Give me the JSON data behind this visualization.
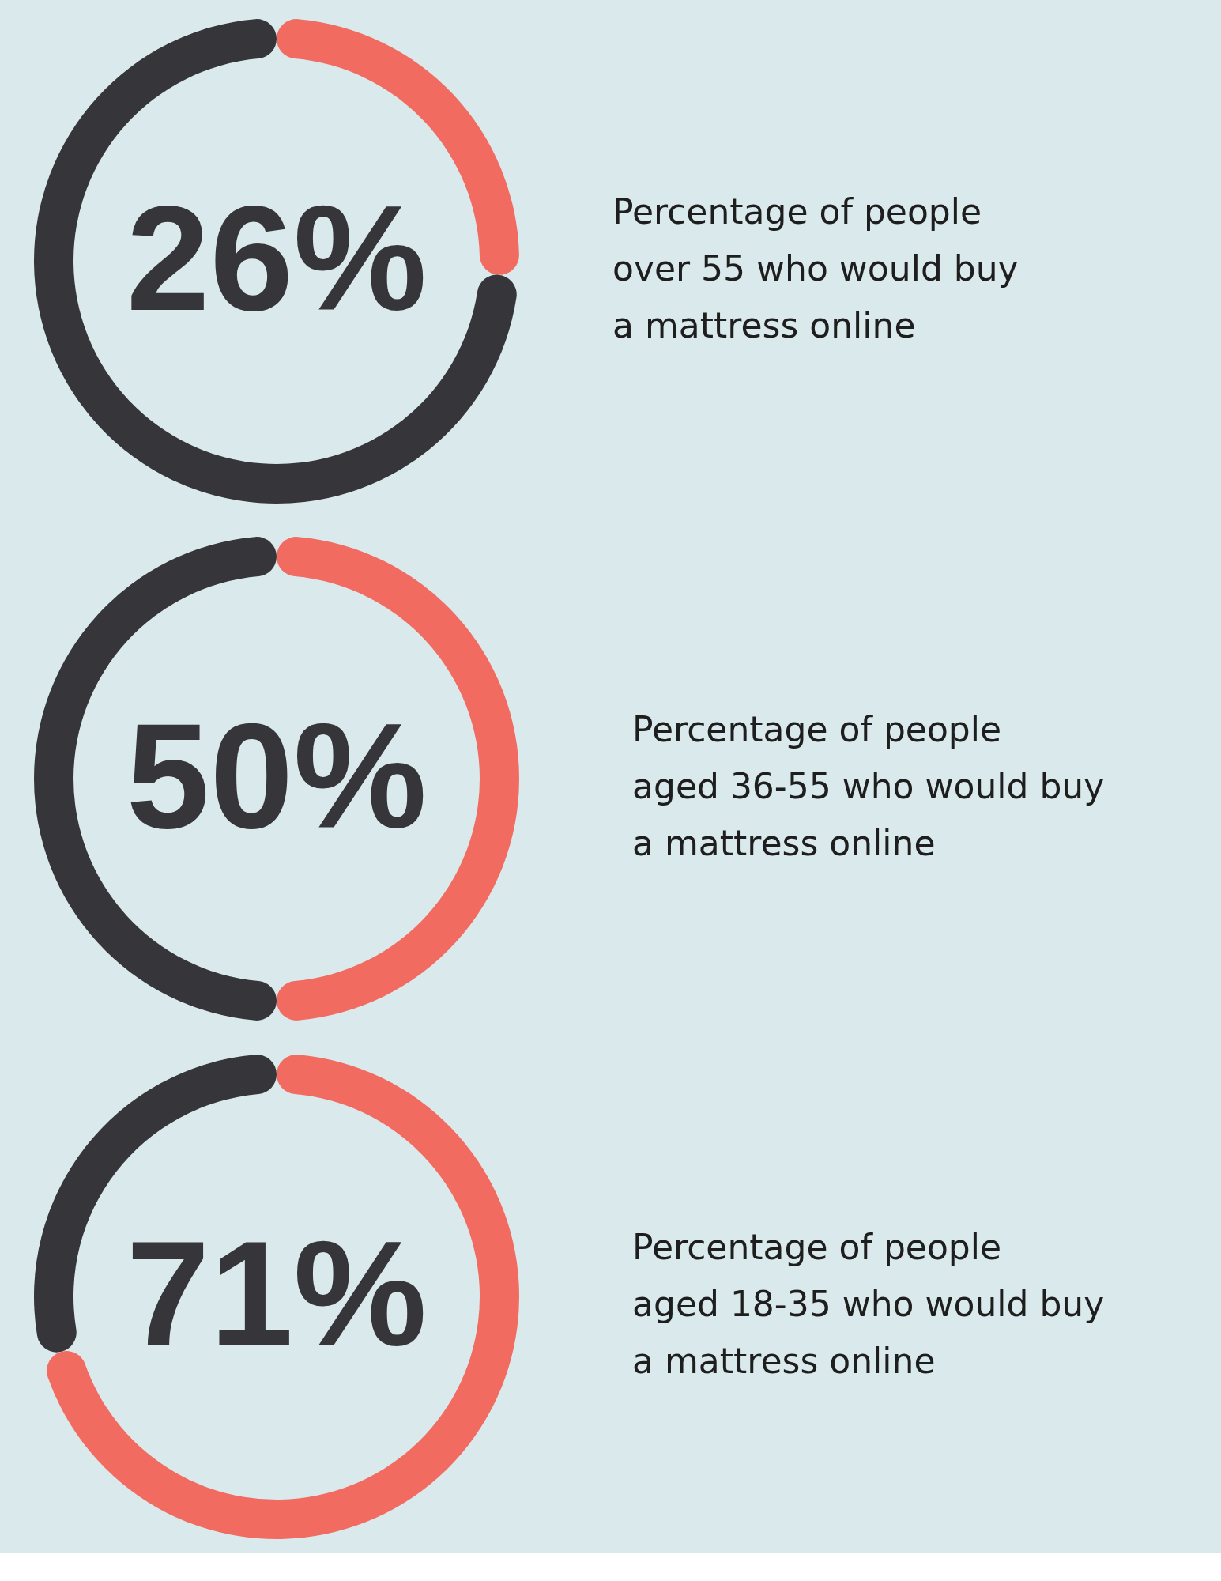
{
  "chart_data": [
    {
      "type": "donut",
      "title": "Percentage of people\nover 55 who would buy\na mattress online",
      "categories": [
        null,
        null
      ],
      "values": [
        26,
        74
      ],
      "colors": [
        "#f26b61",
        "#36363a"
      ],
      "value_labels": [
        "26%",
        null
      ]
    },
    {
      "type": "donut",
      "title": "Percentage of people\naged 36-55 who would buy\na mattress online",
      "categories": [
        null,
        null
      ],
      "values": [
        50,
        50
      ],
      "colors": [
        "#f26b61",
        "#36363a"
      ],
      "value_labels": [
        "50%",
        null
      ]
    },
    {
      "type": "donut",
      "title": "Percentage of people\naged 18-35 who would buy\na mattress online",
      "categories": [
        null,
        null
      ],
      "values": [
        71,
        29
      ],
      "colors": [
        "#f26b61",
        "#36363a"
      ],
      "value_labels": [
        "71%",
        null
      ]
    }
  ]
}
